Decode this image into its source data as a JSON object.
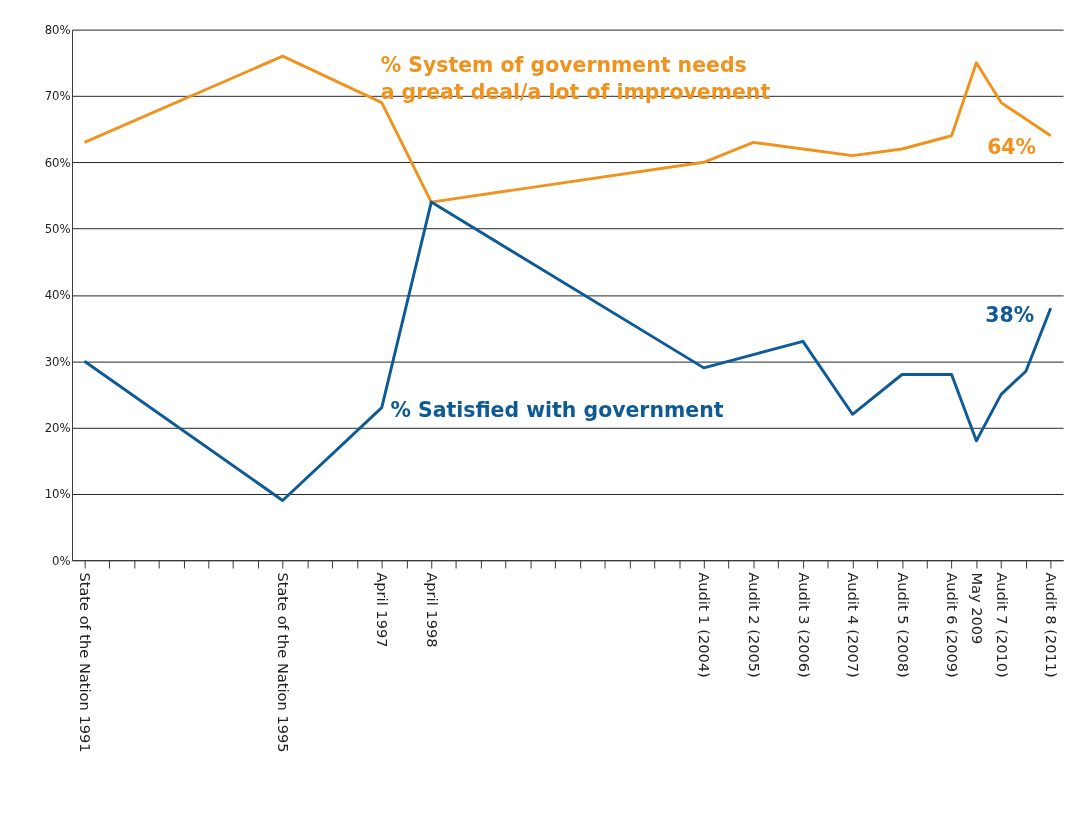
{
  "chart_data": {
    "type": "line",
    "categories": [
      "State of the Nation 1991",
      null,
      null,
      null,
      null,
      null,
      null,
      null,
      "State of the Nation 1995",
      null,
      null,
      null,
      "April 1997",
      null,
      "April 1998",
      null,
      null,
      null,
      null,
      null,
      null,
      null,
      null,
      null,
      null,
      "Audit 1 (2004)",
      null,
      "Audit 2 (2005)",
      null,
      "Audit 3 (2006)",
      null,
      "Audit 4 (2007)",
      null,
      "Audit 5 (2008)",
      null,
      "Audit 6 (2009)",
      "May 2009",
      "Audit 7 (2010)",
      null,
      "Audit 8 (2011)"
    ],
    "series": [
      {
        "color": "#f0921e",
        "values": [
          63,
          null,
          null,
          null,
          null,
          null,
          null,
          null,
          76,
          null,
          null,
          null,
          69,
          null,
          54,
          null,
          null,
          null,
          null,
          null,
          null,
          null,
          null,
          null,
          null,
          60,
          null,
          63,
          null,
          62,
          null,
          61,
          null,
          62,
          null,
          64,
          75,
          69,
          null,
          64
        ]
      },
      {
        "color": "#0e5a96",
        "values": [
          30,
          null,
          null,
          null,
          null,
          null,
          null,
          null,
          9,
          null,
          null,
          null,
          23,
          null,
          54,
          null,
          null,
          null,
          null,
          null,
          null,
          null,
          null,
          null,
          null,
          29,
          null,
          31,
          null,
          33,
          null,
          22,
          null,
          28,
          null,
          28,
          18,
          25,
          28.5,
          38
        ]
      }
    ],
    "ylim": [
      0,
      80
    ],
    "yticks": [
      {
        "value": 0,
        "label": "0%"
      },
      {
        "value": 10,
        "label": "10%"
      },
      {
        "value": 20,
        "label": "20%"
      },
      {
        "value": 30,
        "label": "30%"
      },
      {
        "value": 40,
        "label": "40%"
      },
      {
        "value": 50,
        "label": "50%"
      },
      {
        "value": 60,
        "label": "60%"
      },
      {
        "value": 70,
        "label": "70%"
      },
      {
        "value": 80,
        "label": "80%"
      }
    ],
    "grid": "y",
    "line_style": "solid",
    "annotations": [
      "% System of government needs\na great deal/a lot of improvement",
      "% Satisfied with government",
      "64%",
      "38%"
    ]
  }
}
